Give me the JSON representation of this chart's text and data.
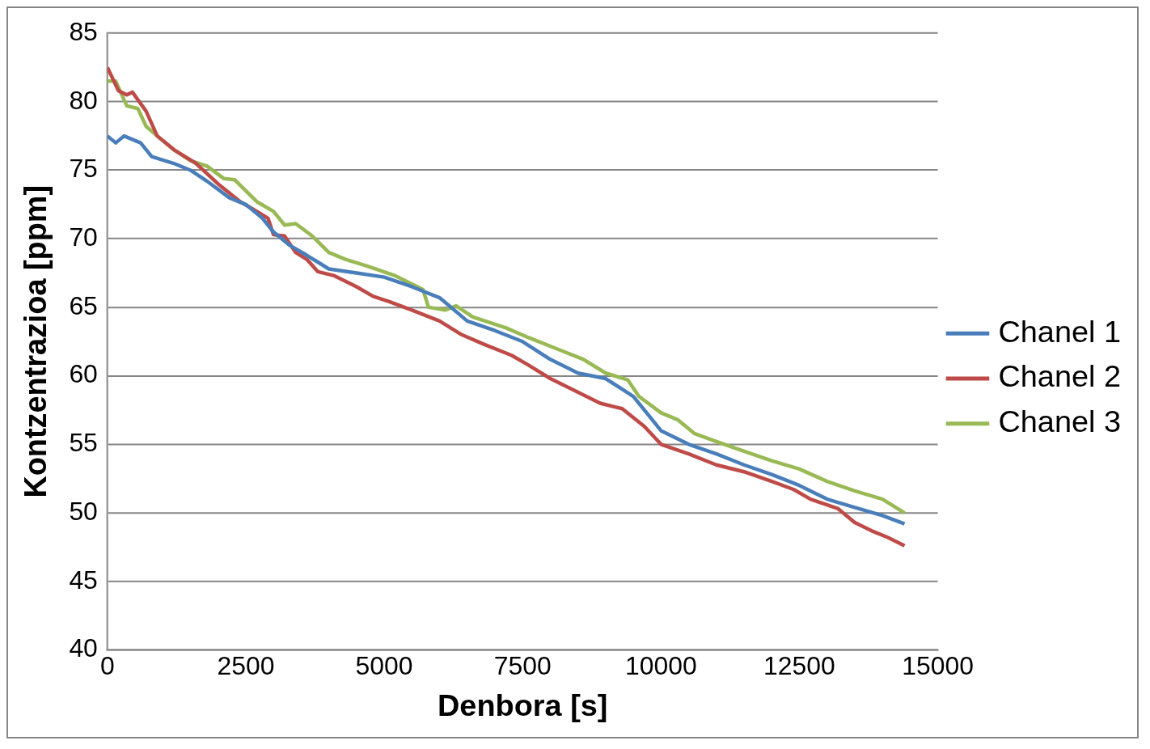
{
  "chart_data": {
    "type": "line",
    "xlabel": "Denbora [s]",
    "ylabel": "Kontzentrazioa [ppm]",
    "xlim": [
      0,
      15000
    ],
    "xticks": [
      0,
      2500,
      5000,
      7500,
      10000,
      12500,
      15000
    ],
    "ylim": [
      40,
      85
    ],
    "yticks": [
      40,
      45,
      50,
      55,
      60,
      65,
      70,
      75,
      80,
      85
    ],
    "grid": "y",
    "legend": "right",
    "marker": "none",
    "line_style": "solid",
    "series": [
      {
        "name": "Chanel 1",
        "color": "#4a7ebb",
        "x": [
          0,
          150,
          300,
          600,
          800,
          1200,
          1500,
          1800,
          2200,
          2500,
          2800,
          3000,
          3300,
          3600,
          3800,
          4000,
          4500,
          5000,
          5500,
          6000,
          6500,
          7000,
          7500,
          8000,
          8500,
          9000,
          9500,
          10000,
          10500,
          11000,
          11500,
          12000,
          12500,
          13000,
          13500,
          14000,
          14400
        ],
        "values": [
          77.5,
          77,
          77.5,
          77,
          76,
          75.5,
          75,
          74.2,
          73,
          72.5,
          71.5,
          70.5,
          69.5,
          68.8,
          68.3,
          67.8,
          67.5,
          67.2,
          66.5,
          65.7,
          64,
          63.3,
          62.5,
          61.2,
          60.2,
          59.8,
          58.5,
          56,
          55,
          54.3,
          53.5,
          52.8,
          52,
          51,
          50.4,
          49.8,
          49.2
        ]
      },
      {
        "name": "Chanel 2",
        "color": "#be4b48",
        "x": [
          0,
          200,
          350,
          450,
          700,
          900,
          1200,
          1600,
          2000,
          2400,
          2700,
          2900,
          3000,
          3200,
          3400,
          3600,
          3800,
          4100,
          4500,
          4800,
          5100,
          5500,
          6000,
          6400,
          6800,
          7300,
          7600,
          8000,
          8400,
          8900,
          9300,
          9700,
          10000,
          10500,
          11000,
          11500,
          12000,
          12400,
          12700,
          13200,
          13500,
          13800,
          14100,
          14400
        ],
        "values": [
          82.5,
          80.8,
          80.5,
          80.7,
          79.3,
          77.5,
          76.5,
          75.5,
          74,
          72.7,
          72,
          71.5,
          70.3,
          70.2,
          69,
          68.5,
          67.6,
          67.3,
          66.5,
          65.8,
          65.4,
          64.8,
          64,
          63,
          62.3,
          61.5,
          60.8,
          59.8,
          59,
          58,
          57.6,
          56.3,
          55,
          54.3,
          53.5,
          53,
          52.3,
          51.7,
          51,
          50.3,
          49.3,
          48.7,
          48.2,
          47.6
        ]
      },
      {
        "name": "Chanel 3",
        "color": "#98b954",
        "x": [
          0,
          150,
          350,
          550,
          700,
          900,
          1200,
          1500,
          1800,
          2100,
          2300,
          2500,
          2700,
          3000,
          3200,
          3400,
          3700,
          4000,
          4300,
          4700,
          5200,
          5600,
          5700,
          5800,
          6100,
          6300,
          6600,
          7200,
          7600,
          8100,
          8600,
          9000,
          9400,
          9600,
          10000,
          10300,
          10600,
          11000,
          11500,
          12000,
          12500,
          13000,
          13500,
          14000,
          14200,
          14400
        ],
        "values": [
          81.5,
          81.5,
          79.7,
          79.5,
          78.2,
          77.5,
          76.5,
          75.7,
          75.3,
          74.4,
          74.3,
          73.5,
          72.7,
          72,
          71,
          71.1,
          70.2,
          69,
          68.5,
          68,
          67.3,
          66.5,
          66.3,
          65,
          64.8,
          65.1,
          64.3,
          63.5,
          62.8,
          62,
          61.2,
          60.2,
          59.7,
          58.5,
          57.3,
          56.8,
          55.8,
          55.2,
          54.5,
          53.8,
          53.2,
          52.3,
          51.6,
          51,
          50.5,
          50
        ]
      }
    ]
  }
}
